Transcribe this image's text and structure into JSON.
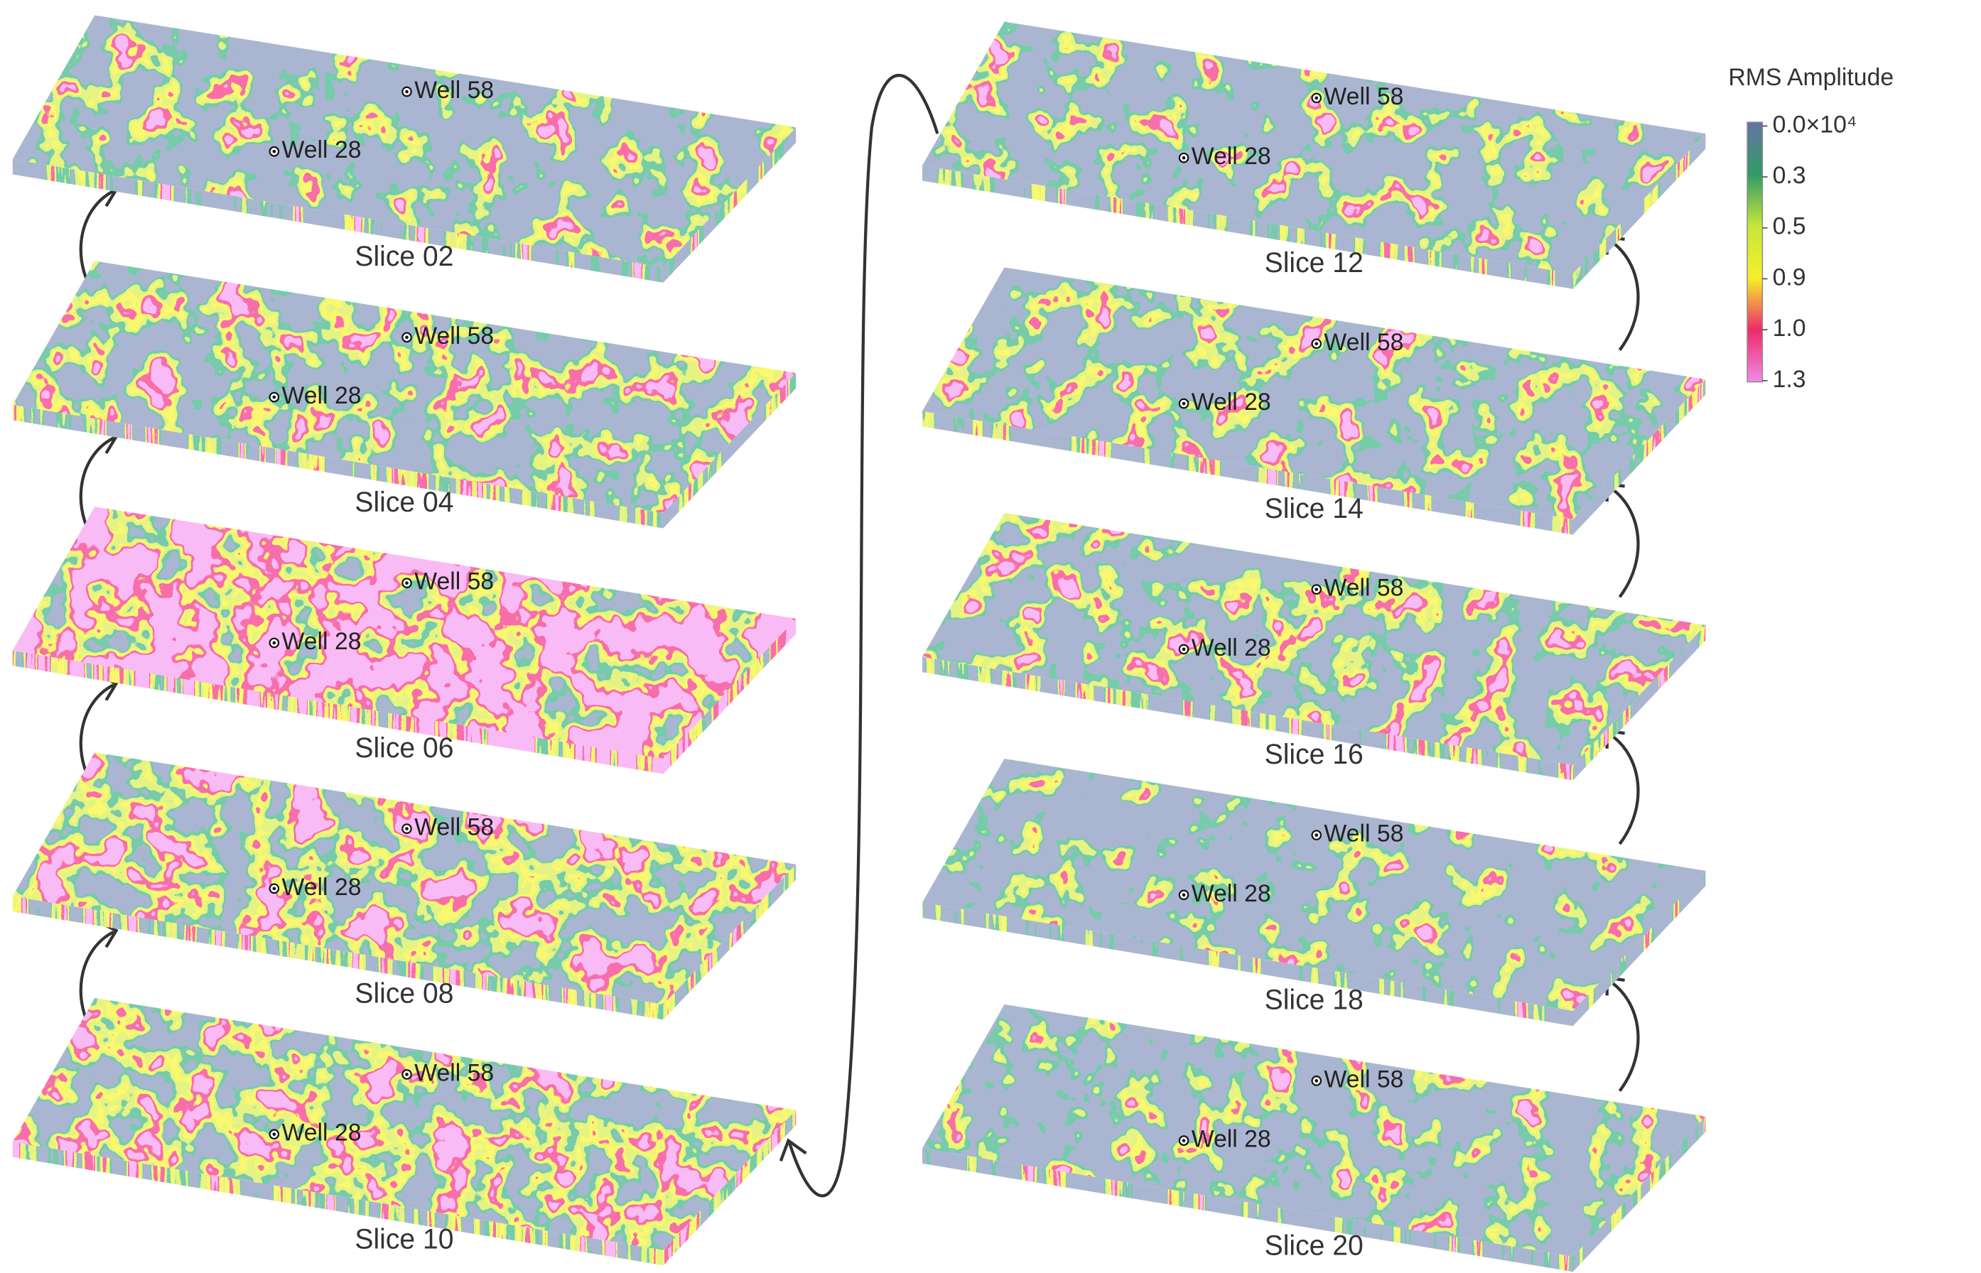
{
  "slices": [
    {
      "label": "Slice 02",
      "wells": [
        "Well 58",
        "Well 28"
      ]
    },
    {
      "label": "Slice 04",
      "wells": [
        "Well 58",
        "Well 28"
      ]
    },
    {
      "label": "Slice 06",
      "wells": [
        "Well 58",
        "Well 28"
      ]
    },
    {
      "label": "Slice 08",
      "wells": [
        "Well 58",
        "Well 28"
      ]
    },
    {
      "label": "Slice 10",
      "wells": [
        "Well 58",
        "Well 28"
      ]
    },
    {
      "label": "Slice 12",
      "wells": [
        "Well 58",
        "Well 28"
      ]
    },
    {
      "label": "Slice 14",
      "wells": [
        "Well 58",
        "Well 28"
      ]
    },
    {
      "label": "Slice 16",
      "wells": [
        "Well 58",
        "Well 28"
      ]
    },
    {
      "label": "Slice 18",
      "wells": [
        "Well 58",
        "Well 28"
      ]
    },
    {
      "label": "Slice 20",
      "wells": [
        "Well 58",
        "Well 28"
      ]
    }
  ],
  "legend": {
    "title": "RMS  Amplitude",
    "ticks": [
      "0.0×10⁴",
      "0.3",
      "0.5",
      "0.9",
      "1.0",
      "1.3"
    ]
  }
}
